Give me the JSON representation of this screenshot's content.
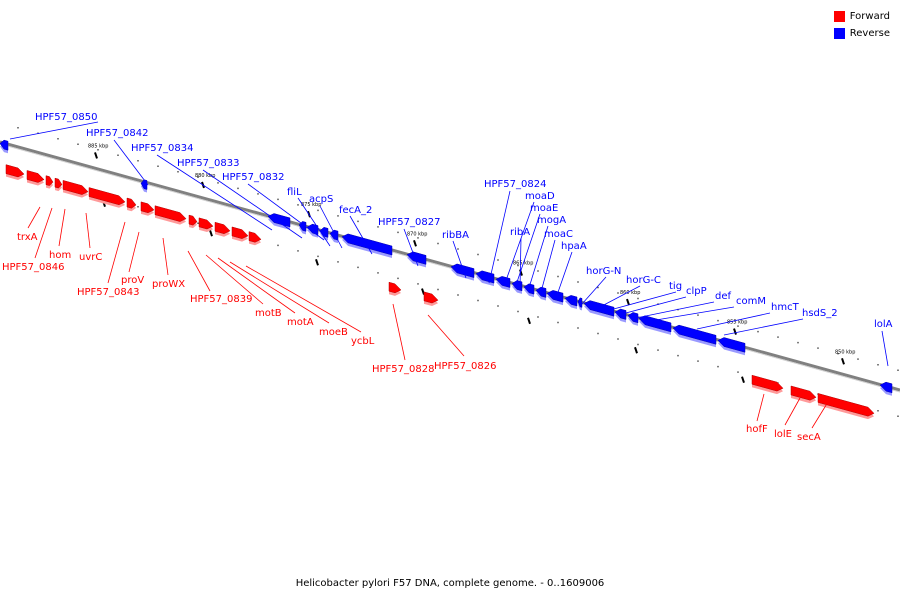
{
  "legend": {
    "forward_label": "Forward",
    "reverse_label": "Reverse",
    "forward_color": "#ff0000",
    "reverse_color": "#0000ff"
  },
  "caption": "Helicobacter pylori F57 DNA, complete genome. - 0..1609006",
  "scale_labels": [
    "885 kbp",
    "880 kbp",
    "875 kbp",
    "870 kbp",
    "865 kbp",
    "860 kbp",
    "855 kbp",
    "850 kbp"
  ],
  "forward_genes": [
    "trxA",
    "HPF57_0846",
    "hom",
    "uvrC",
    "HPF57_0843",
    "proV",
    "proWX",
    "HPF57_0839",
    "motB",
    "motA",
    "moeB",
    "ycbL",
    "HPF57_0828",
    "HPF57_0826",
    "hofF",
    "lolE",
    "secA"
  ],
  "reverse_genes": [
    "HPF57_0850",
    "HPF57_0842",
    "HPF57_0834",
    "HPF57_0833",
    "HPF57_0832",
    "fliL",
    "acpS",
    "fecA_2",
    "HPF57_0827",
    "ribBA",
    "HPF57_0824",
    "moaD",
    "moaE",
    "mogA",
    "ribA",
    "moaC",
    "hpaA",
    "horG-N",
    "horG-C",
    "tig",
    "clpP",
    "def",
    "comM",
    "hmcT",
    "hsdS_2",
    "lolA"
  ]
}
